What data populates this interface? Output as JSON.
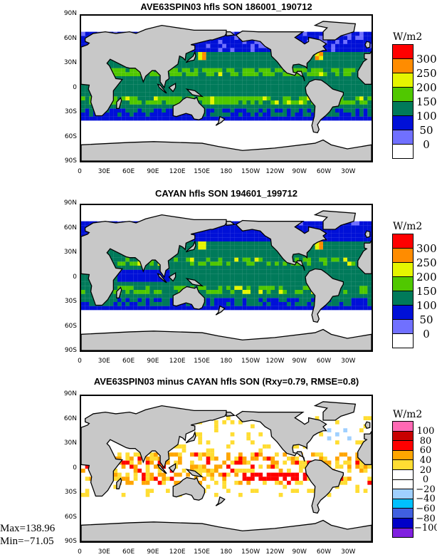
{
  "panels": [
    {
      "title": "AVE63SPIN03 hfls SON 186001_190712",
      "units": "W/m2",
      "colorbar": {
        "labels": [
          "300",
          "250",
          "200",
          "150",
          "100",
          "50",
          "0"
        ],
        "colors": [
          "#ff0000",
          "#ff8c00",
          "#e5f500",
          "#50c800",
          "#007a5a",
          "#0010d8",
          "#7070ff",
          "#ffffff"
        ]
      }
    },
    {
      "title": "CAYAN hfls SON 194601_199712",
      "units": "W/m2",
      "colorbar": {
        "labels": [
          "300",
          "250",
          "200",
          "150",
          "100",
          "50",
          "0"
        ],
        "colors": [
          "#ff0000",
          "#ff8c00",
          "#e5f500",
          "#50c800",
          "#007a5a",
          "#0010d8",
          "#7070ff",
          "#ffffff"
        ]
      }
    },
    {
      "title": "AVE63SPIN03 minus CAYAN hfls SON (Rxy=0.79, RMSE=0.8)",
      "units": "W/m2",
      "colorbar": {
        "labels": [
          "100",
          "80",
          "60",
          "40",
          "20",
          "0",
          "−20",
          "−40",
          "−60",
          "−80",
          "−100"
        ],
        "colors": [
          "#ff69b4",
          "#c80000",
          "#ff0000",
          "#ffa500",
          "#ffdd33",
          "#ffffff",
          "#ffffff",
          "#a0d0ff",
          "#00c0ff",
          "#4060e0",
          "#0000c8",
          "#8020e0"
        ]
      }
    }
  ],
  "lat_labels": [
    "90N",
    "60N",
    "30N",
    "0",
    "30S",
    "60S",
    "90S"
  ],
  "lon_labels": [
    "0",
    "30E",
    "60E",
    "90E",
    "120E",
    "150E",
    "180",
    "150W",
    "120W",
    "90W",
    "60W",
    "30W"
  ],
  "stats": {
    "max": "Max=138.96",
    "min": "Min=−71.05"
  }
}
